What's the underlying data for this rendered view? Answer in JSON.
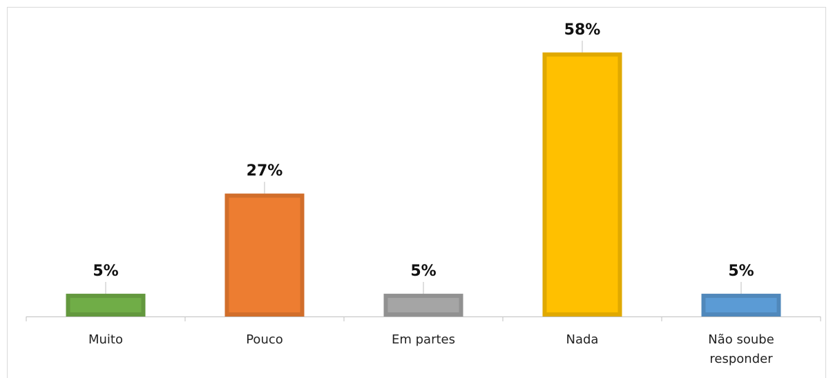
{
  "chart_data": {
    "type": "bar",
    "categories": [
      "Muito",
      "Pouco",
      "Em partes",
      "Nada",
      "Não soube responder"
    ],
    "values": [
      5,
      27,
      5,
      58,
      5
    ],
    "value_labels": [
      "5%",
      "27%",
      "5%",
      "58%",
      "5%"
    ],
    "colors": [
      "#70ad47",
      "#ed7d31",
      "#a5a5a5",
      "#ffc000",
      "#5b9bd5"
    ],
    "ylim": [
      0,
      68
    ]
  }
}
